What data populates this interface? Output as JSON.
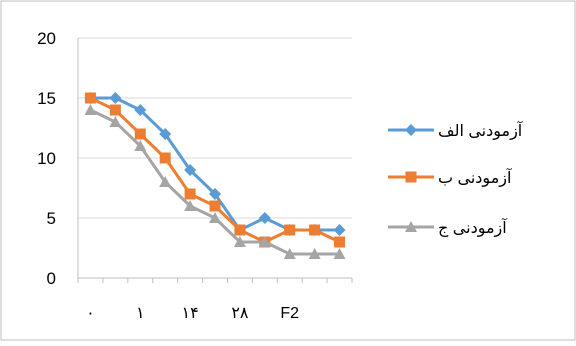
{
  "chart_data": {
    "type": "line",
    "ylim": [
      0,
      20
    ],
    "y_ticks": [
      "0",
      "5",
      "10",
      "15",
      "20"
    ],
    "grid": true,
    "legend_position": "right",
    "x_tick_labels": [
      "۰",
      "",
      "۱",
      "",
      "۱۴",
      "",
      "۲۸",
      "",
      "F2",
      "",
      ""
    ],
    "series": [
      {
        "name": "آزمودنی الف",
        "color": "#5b9bd5",
        "marker": "diamond",
        "values": [
          15,
          15,
          14,
          12,
          9,
          7,
          4,
          5,
          4,
          4,
          4
        ]
      },
      {
        "name": "آزمودنی ب",
        "color": "#ed7d31",
        "marker": "square",
        "values": [
          15,
          14,
          12,
          10,
          7,
          6,
          4,
          3,
          4,
          4,
          3
        ]
      },
      {
        "name": "آزمودنی ج",
        "color": "#a5a5a5",
        "marker": "triangle",
        "values": [
          14,
          13,
          11,
          8,
          6,
          5,
          3,
          3,
          2,
          2,
          2
        ]
      }
    ]
  }
}
